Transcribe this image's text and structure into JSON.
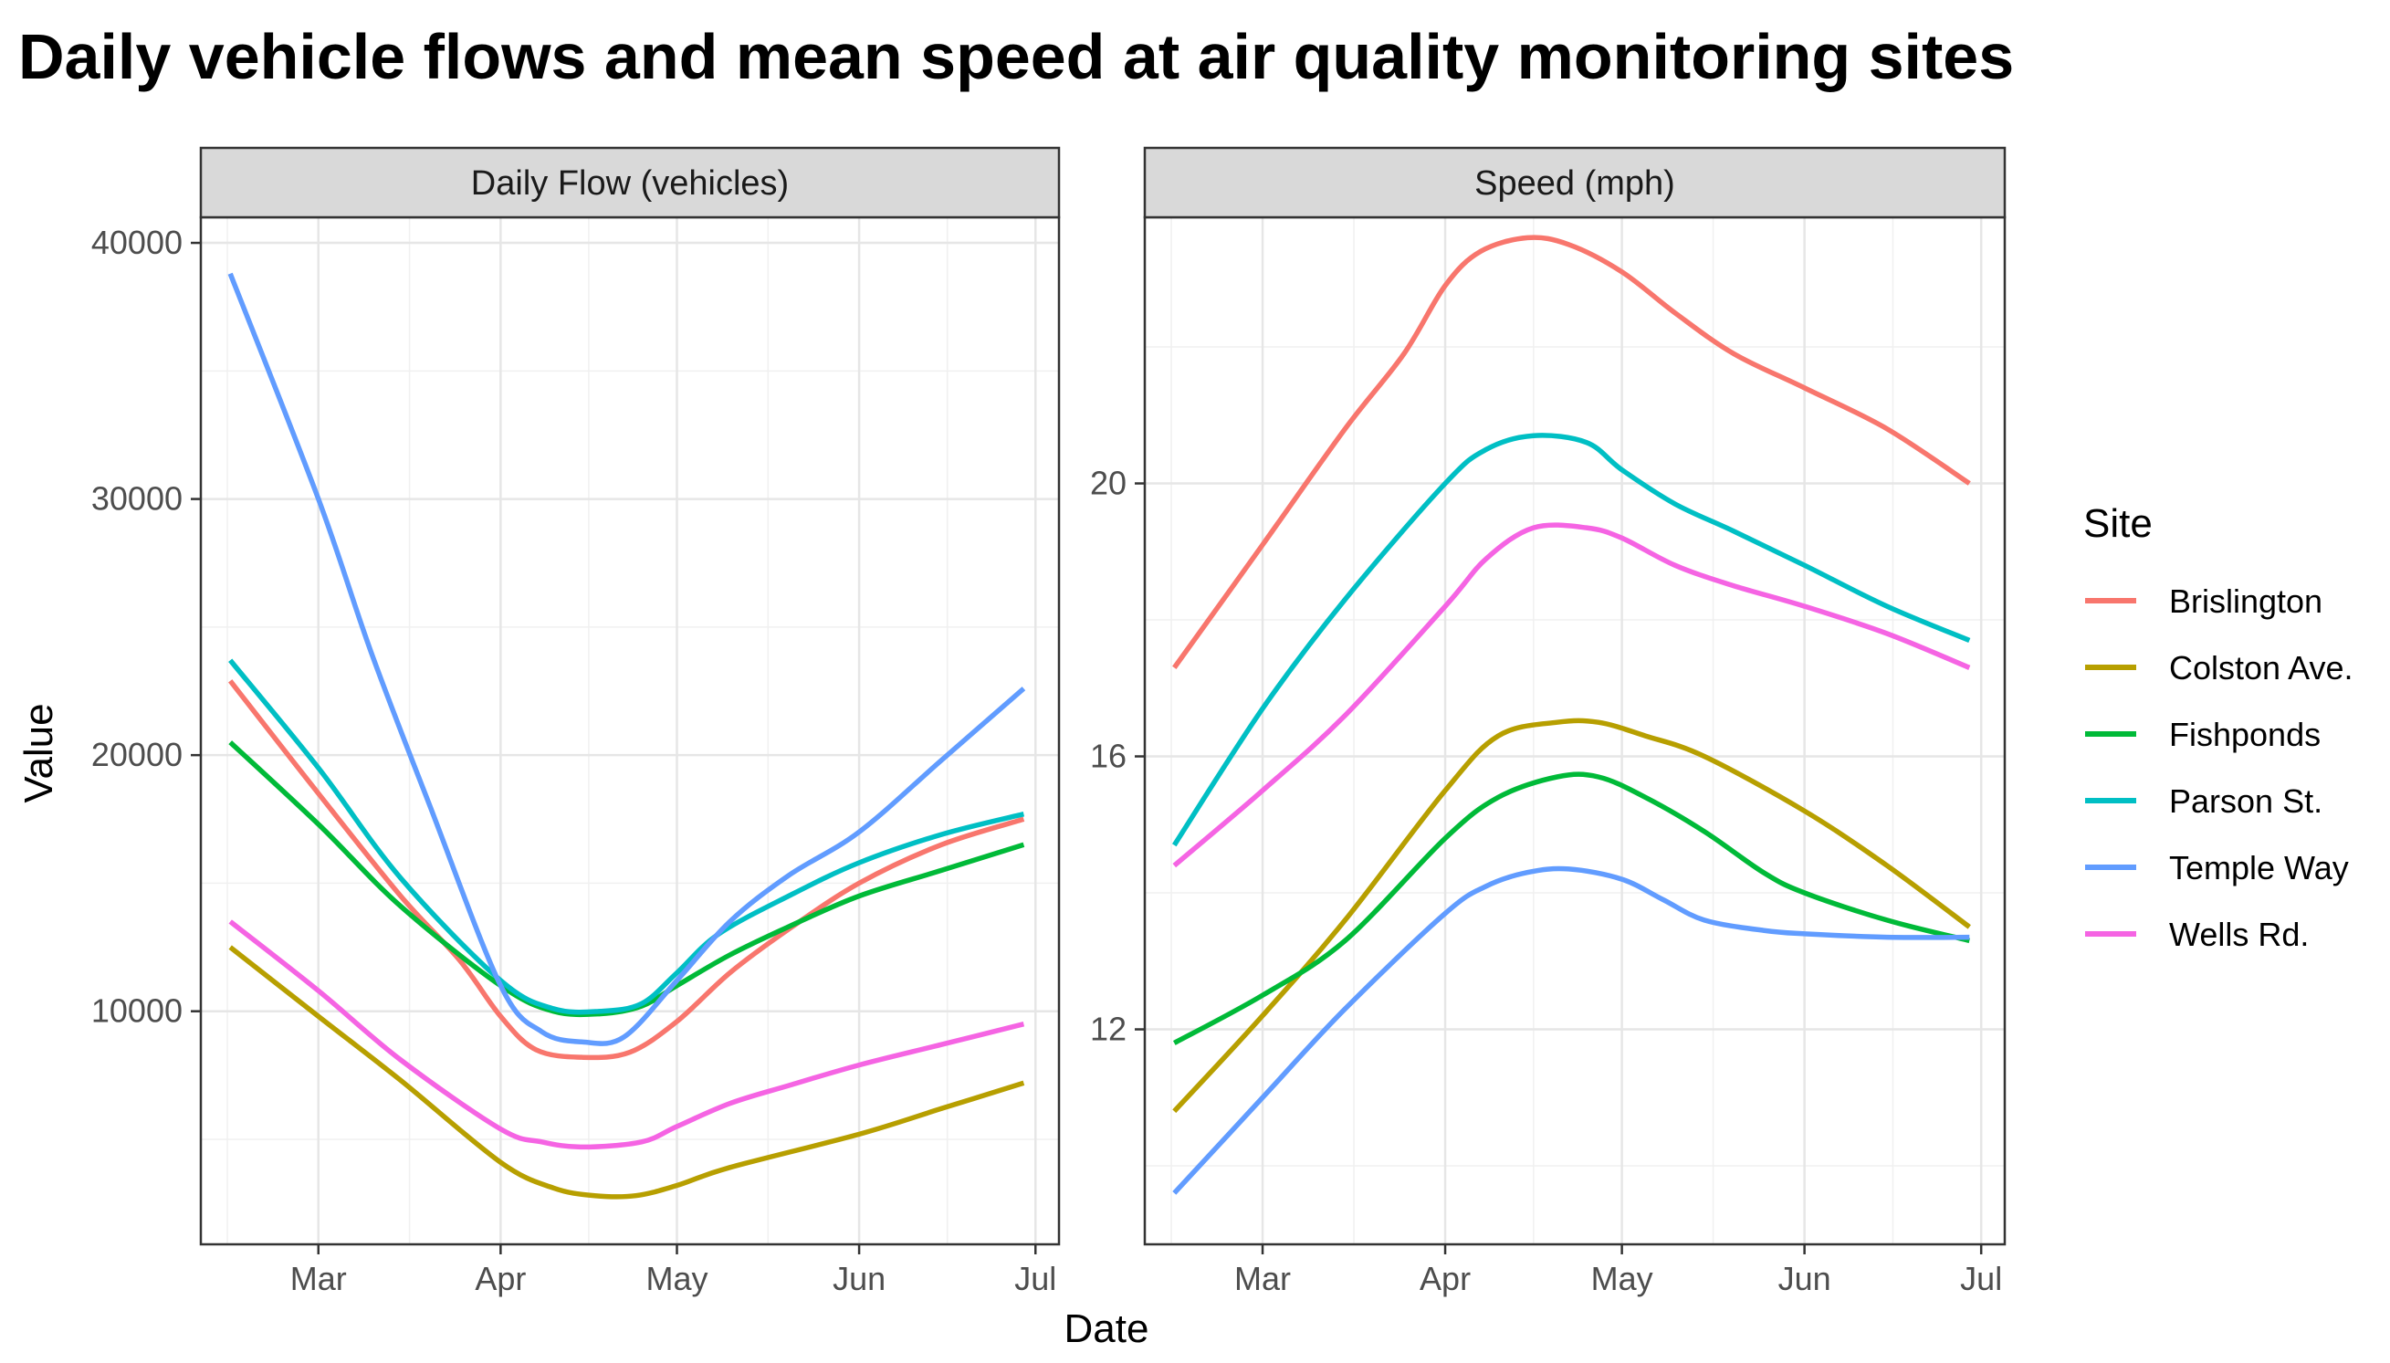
{
  "title": "Daily vehicle flows and mean speed at air quality monitoring sites",
  "chart_data": {
    "type": "line",
    "title": "Daily vehicle flows and mean speed at air quality monitoring sites",
    "xlabel": "Date",
    "ylabel": "Value",
    "x_ticks": [
      "Mar",
      "Apr",
      "May",
      "Jun",
      "Jul"
    ],
    "x_tick_dates": [
      "2020-03-01",
      "2020-04-01",
      "2020-05-01",
      "2020-06-01",
      "2020-07-01"
    ],
    "xlim": [
      "2020-02-10",
      "2020-07-05"
    ],
    "grid": true,
    "legend": {
      "title": "Site",
      "position": "right"
    },
    "series_colors": {
      "Brislington": "#F8766D",
      "Colston Ave.": "#B79F00",
      "Fishponds": "#00BA38",
      "Parson St.": "#00BFC4",
      "Temple Way": "#619CFF",
      "Wells Rd.": "#F564E3"
    },
    "panels": [
      {
        "strip": "Daily Flow (vehicles)",
        "ylim": [
          900,
          41000
        ],
        "y_ticks": [
          10000,
          20000,
          30000,
          40000
        ],
        "y_tick_labels": [
          "10000",
          "20000",
          "30000",
          "40000"
        ],
        "y_minor": [
          5000,
          15000,
          25000,
          35000
        ],
        "series": [
          {
            "name": "Brislington",
            "x": [
              "2020-02-15",
              "2020-03-01",
              "2020-03-15",
              "2020-03-25",
              "2020-04-01",
              "2020-04-07",
              "2020-04-15",
              "2020-04-23",
              "2020-05-01",
              "2020-05-10",
              "2020-05-20",
              "2020-06-01",
              "2020-06-15",
              "2020-06-29"
            ],
            "y": [
              22900,
              18500,
              14500,
              12000,
              9800,
              8500,
              8200,
              8400,
              9600,
              11500,
              13200,
              15000,
              16500,
              17500
            ]
          },
          {
            "name": "Colston Ave.",
            "x": [
              "2020-02-15",
              "2020-03-01",
              "2020-03-15",
              "2020-04-01",
              "2020-04-10",
              "2020-04-17",
              "2020-04-24",
              "2020-05-01",
              "2020-05-10",
              "2020-06-01",
              "2020-06-15",
              "2020-06-29"
            ],
            "y": [
              12500,
              9800,
              7300,
              4100,
              3100,
              2800,
              2800,
              3200,
              3900,
              5200,
              6200,
              7200
            ]
          },
          {
            "name": "Fishponds",
            "x": [
              "2020-02-15",
              "2020-03-01",
              "2020-03-15",
              "2020-04-01",
              "2020-04-10",
              "2020-04-18",
              "2020-04-25",
              "2020-05-01",
              "2020-05-10",
              "2020-05-20",
              "2020-06-01",
              "2020-06-15",
              "2020-06-29"
            ],
            "y": [
              20500,
              17300,
              14100,
              11000,
              10000,
              9900,
              10200,
              11000,
              12200,
              13300,
              14500,
              15500,
              16500
            ]
          },
          {
            "name": "Parson St.",
            "x": [
              "2020-02-15",
              "2020-03-01",
              "2020-03-15",
              "2020-04-01",
              "2020-04-10",
              "2020-04-18",
              "2020-04-25",
              "2020-05-01",
              "2020-05-08",
              "2020-05-20",
              "2020-06-01",
              "2020-06-15",
              "2020-06-29"
            ],
            "y": [
              23700,
              19500,
              15200,
              11200,
              10100,
              10000,
              10300,
              11500,
              13000,
              14500,
              15800,
              16900,
              17700
            ]
          },
          {
            "name": "Temple Way",
            "x": [
              "2020-02-15",
              "2020-03-01",
              "2020-03-10",
              "2020-03-20",
              "2020-04-01",
              "2020-04-08",
              "2020-04-15",
              "2020-04-22",
              "2020-05-01",
              "2020-05-10",
              "2020-05-20",
              "2020-06-01",
              "2020-06-15",
              "2020-06-29"
            ],
            "y": [
              38800,
              30000,
              24000,
              18000,
              11000,
              9200,
              8800,
              9000,
              11200,
              13500,
              15300,
              17000,
              19800,
              22600
            ]
          },
          {
            "name": "Wells Rd.",
            "x": [
              "2020-02-15",
              "2020-03-01",
              "2020-03-15",
              "2020-04-01",
              "2020-04-08",
              "2020-04-15",
              "2020-04-25",
              "2020-05-01",
              "2020-05-10",
              "2020-05-20",
              "2020-06-01",
              "2020-06-15",
              "2020-06-29"
            ],
            "y": [
              13500,
              10800,
              8100,
              5400,
              4900,
              4700,
              4900,
              5500,
              6400,
              7100,
              7900,
              8700,
              9500
            ]
          }
        ]
      },
      {
        "strip": "Speed (mph)",
        "ylim": [
          8.85,
          23.9
        ],
        "y_ticks": [
          12,
          16,
          20
        ],
        "y_tick_labels": [
          "12",
          "16",
          "20"
        ],
        "y_minor": [
          10,
          14,
          18,
          22
        ],
        "series": [
          {
            "name": "Brislington",
            "x": [
              "2020-02-15",
              "2020-03-01",
              "2020-03-15",
              "2020-03-25",
              "2020-04-01",
              "2020-04-07",
              "2020-04-15",
              "2020-04-22",
              "2020-05-01",
              "2020-05-10",
              "2020-05-20",
              "2020-06-01",
              "2020-06-15",
              "2020-06-29"
            ],
            "y": [
              17.3,
              19.1,
              20.8,
              21.9,
              22.9,
              23.4,
              23.6,
              23.5,
              23.1,
              22.5,
              21.9,
              21.4,
              20.8,
              20.0
            ]
          },
          {
            "name": "Colston Ave.",
            "x": [
              "2020-02-15",
              "2020-03-01",
              "2020-03-15",
              "2020-04-01",
              "2020-04-10",
              "2020-04-20",
              "2020-04-27",
              "2020-05-05",
              "2020-05-15",
              "2020-06-01",
              "2020-06-15",
              "2020-06-29"
            ],
            "y": [
              10.8,
              12.2,
              13.6,
              15.5,
              16.3,
              16.5,
              16.5,
              16.3,
              16.0,
              15.2,
              14.4,
              13.5
            ]
          },
          {
            "name": "Fishponds",
            "x": [
              "2020-02-15",
              "2020-03-01",
              "2020-03-15",
              "2020-04-01",
              "2020-04-10",
              "2020-04-20",
              "2020-04-27",
              "2020-05-05",
              "2020-05-15",
              "2020-05-25",
              "2020-06-01",
              "2020-06-15",
              "2020-06-29"
            ],
            "y": [
              11.8,
              12.5,
              13.3,
              14.8,
              15.4,
              15.7,
              15.7,
              15.4,
              14.9,
              14.3,
              14.0,
              13.6,
              13.3
            ]
          },
          {
            "name": "Parson St.",
            "x": [
              "2020-02-15",
              "2020-03-01",
              "2020-03-15",
              "2020-04-01",
              "2020-04-08",
              "2020-04-16",
              "2020-04-25",
              "2020-05-01",
              "2020-05-10",
              "2020-05-20",
              "2020-06-01",
              "2020-06-15",
              "2020-06-29"
            ],
            "y": [
              14.7,
              16.7,
              18.3,
              20.0,
              20.5,
              20.7,
              20.6,
              20.2,
              19.7,
              19.3,
              18.8,
              18.2,
              17.7
            ]
          },
          {
            "name": "Temple Way",
            "x": [
              "2020-02-15",
              "2020-03-01",
              "2020-03-15",
              "2020-04-01",
              "2020-04-08",
              "2020-04-15",
              "2020-04-22",
              "2020-05-01",
              "2020-05-08",
              "2020-05-15",
              "2020-05-25",
              "2020-06-01",
              "2020-06-15",
              "2020-06-29"
            ],
            "y": [
              9.6,
              11.0,
              12.3,
              13.7,
              14.1,
              14.3,
              14.35,
              14.2,
              13.9,
              13.6,
              13.45,
              13.4,
              13.35,
              13.35
            ]
          },
          {
            "name": "Wells Rd.",
            "x": [
              "2020-02-15",
              "2020-03-01",
              "2020-03-15",
              "2020-04-01",
              "2020-04-08",
              "2020-04-16",
              "2020-04-25",
              "2020-05-01",
              "2020-05-10",
              "2020-05-20",
              "2020-06-01",
              "2020-06-15",
              "2020-06-29"
            ],
            "y": [
              14.4,
              15.5,
              16.6,
              18.2,
              18.9,
              19.35,
              19.35,
              19.2,
              18.8,
              18.5,
              18.2,
              17.8,
              17.3
            ]
          }
        ]
      }
    ]
  }
}
